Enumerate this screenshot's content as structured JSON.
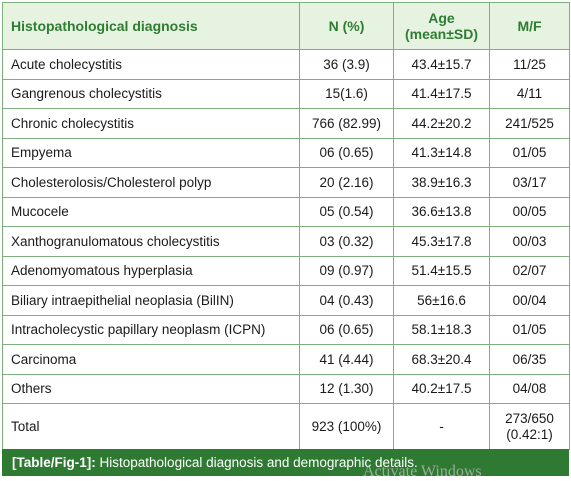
{
  "table": {
    "headers": {
      "diagnosis": "Histopathological diagnosis",
      "n": "N (%)",
      "age_line1": "Age",
      "age_line2": "(mean±SD)",
      "mf": "M/F"
    },
    "rows": [
      {
        "diagnosis": "Acute cholecystitis",
        "n": "36 (3.9)",
        "age": "43.4±15.7",
        "mf": "11/25"
      },
      {
        "diagnosis": "Gangrenous cholecystitis",
        "n": "15(1.6)",
        "age": "41.4±17.5",
        "mf": "4/11"
      },
      {
        "diagnosis": "Chronic cholecystitis",
        "n": "766 (82.99)",
        "age": "44.2±20.2",
        "mf": "241/525"
      },
      {
        "diagnosis": "Empyema",
        "n": "06 (0.65)",
        "age": "41.3±14.8",
        "mf": "01/05"
      },
      {
        "diagnosis": "Cholesterolosis/Cholesterol polyp",
        "n": "20 (2.16)",
        "age": "38.9±16.3",
        "mf": "03/17"
      },
      {
        "diagnosis": "Mucocele",
        "n": "05 (0.54)",
        "age": "36.6±13.8",
        "mf": "00/05"
      },
      {
        "diagnosis": "Xanthogranulomatous cholecystitis",
        "n": "03 (0.32)",
        "age": "45.3±17.8",
        "mf": "00/03"
      },
      {
        "diagnosis": "Adenomyomatous hyperplasia",
        "n": "09 (0.97)",
        "age": "51.4±15.5",
        "mf": "02/07"
      },
      {
        "diagnosis": "Biliary intraepithelial neoplasia (BilIN)",
        "n": "04 (0.43)",
        "age": "56±16.6",
        "mf": "00/04"
      },
      {
        "diagnosis": "Intracholecystic papillary neoplasm (ICPN)",
        "n": "06 (0.65)",
        "age": "58.1±18.3",
        "mf": "01/05"
      },
      {
        "diagnosis": "Carcinoma",
        "n": "41 (4.44)",
        "age": "68.3±20.4",
        "mf": "06/35"
      },
      {
        "diagnosis": "Others",
        "n": "12 (1.30)",
        "age": "40.2±17.5",
        "mf": "04/08"
      }
    ],
    "total": {
      "diagnosis": "Total",
      "n": "923 (100%)",
      "age": "-",
      "mf_line1": "273/650",
      "mf_line2": "(0.42:1)"
    }
  },
  "caption": {
    "label": "[Table/Fig-1]:",
    "text": "Histopathological diagnosis and demographic details."
  },
  "watermark": "Activate Windows"
}
